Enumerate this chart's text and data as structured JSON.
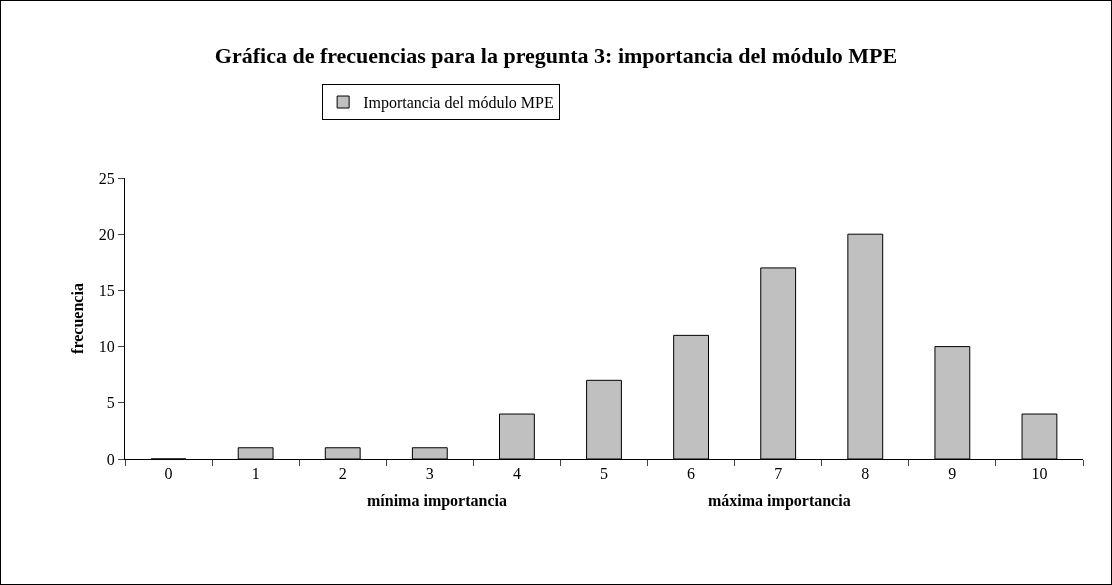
{
  "chart_data": {
    "type": "bar",
    "title": "Gráfica de frecuencias para la pregunta 3: importancia del módulo MPE",
    "ylabel": "frecuencia",
    "categories": [
      "0",
      "1",
      "2",
      "3",
      "4",
      "5",
      "6",
      "7",
      "8",
      "9",
      "10"
    ],
    "series": [
      {
        "name": "Importancia del módulo MPE",
        "color": "#c0c0c0",
        "values": [
          0,
          1,
          1,
          1,
          4,
          7,
          11,
          17,
          20,
          10,
          4
        ]
      }
    ],
    "ylim": [
      0,
      25
    ],
    "yticks": [
      0,
      5,
      10,
      15,
      20,
      25
    ],
    "grid": false,
    "legend": "top",
    "annotations": [
      "mínima importancia",
      "máxima importancia"
    ]
  }
}
